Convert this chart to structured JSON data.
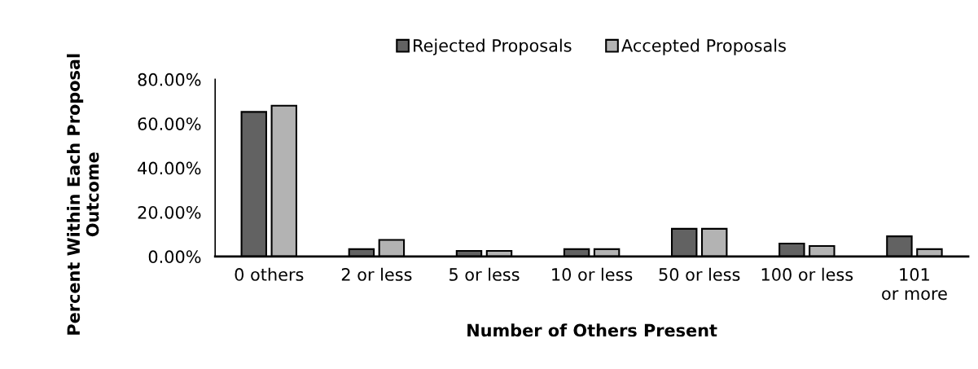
{
  "chart_data": {
    "type": "bar",
    "xlabel": "Number of Others Present",
    "ylabel": "Percent Within Each Proposal Outcome",
    "categories": [
      "0 others",
      "2 or less",
      "5 or less",
      "10 or less",
      "50 or less",
      "100 or less",
      "101 or more"
    ],
    "series": [
      {
        "name": "Rejected Proposals",
        "color": "#626262",
        "values": [
          65.3,
          3.3,
          2.5,
          3.3,
          12.5,
          5.8,
          9.1
        ]
      },
      {
        "name": "Accepted Proposals",
        "color": "#b3b3b3",
        "values": [
          68.1,
          7.5,
          2.5,
          3.3,
          12.5,
          4.7,
          3.3
        ]
      }
    ],
    "ylim": [
      0,
      80
    ],
    "yticks": [
      {
        "value": 0,
        "label": "0.00%"
      },
      {
        "value": 20,
        "label": "20.00%"
      },
      {
        "value": 40,
        "label": "40.00%"
      },
      {
        "value": 60,
        "label": "60.00%"
      },
      {
        "value": 80,
        "label": "80.00%"
      }
    ],
    "grid": false,
    "legend": "top"
  }
}
